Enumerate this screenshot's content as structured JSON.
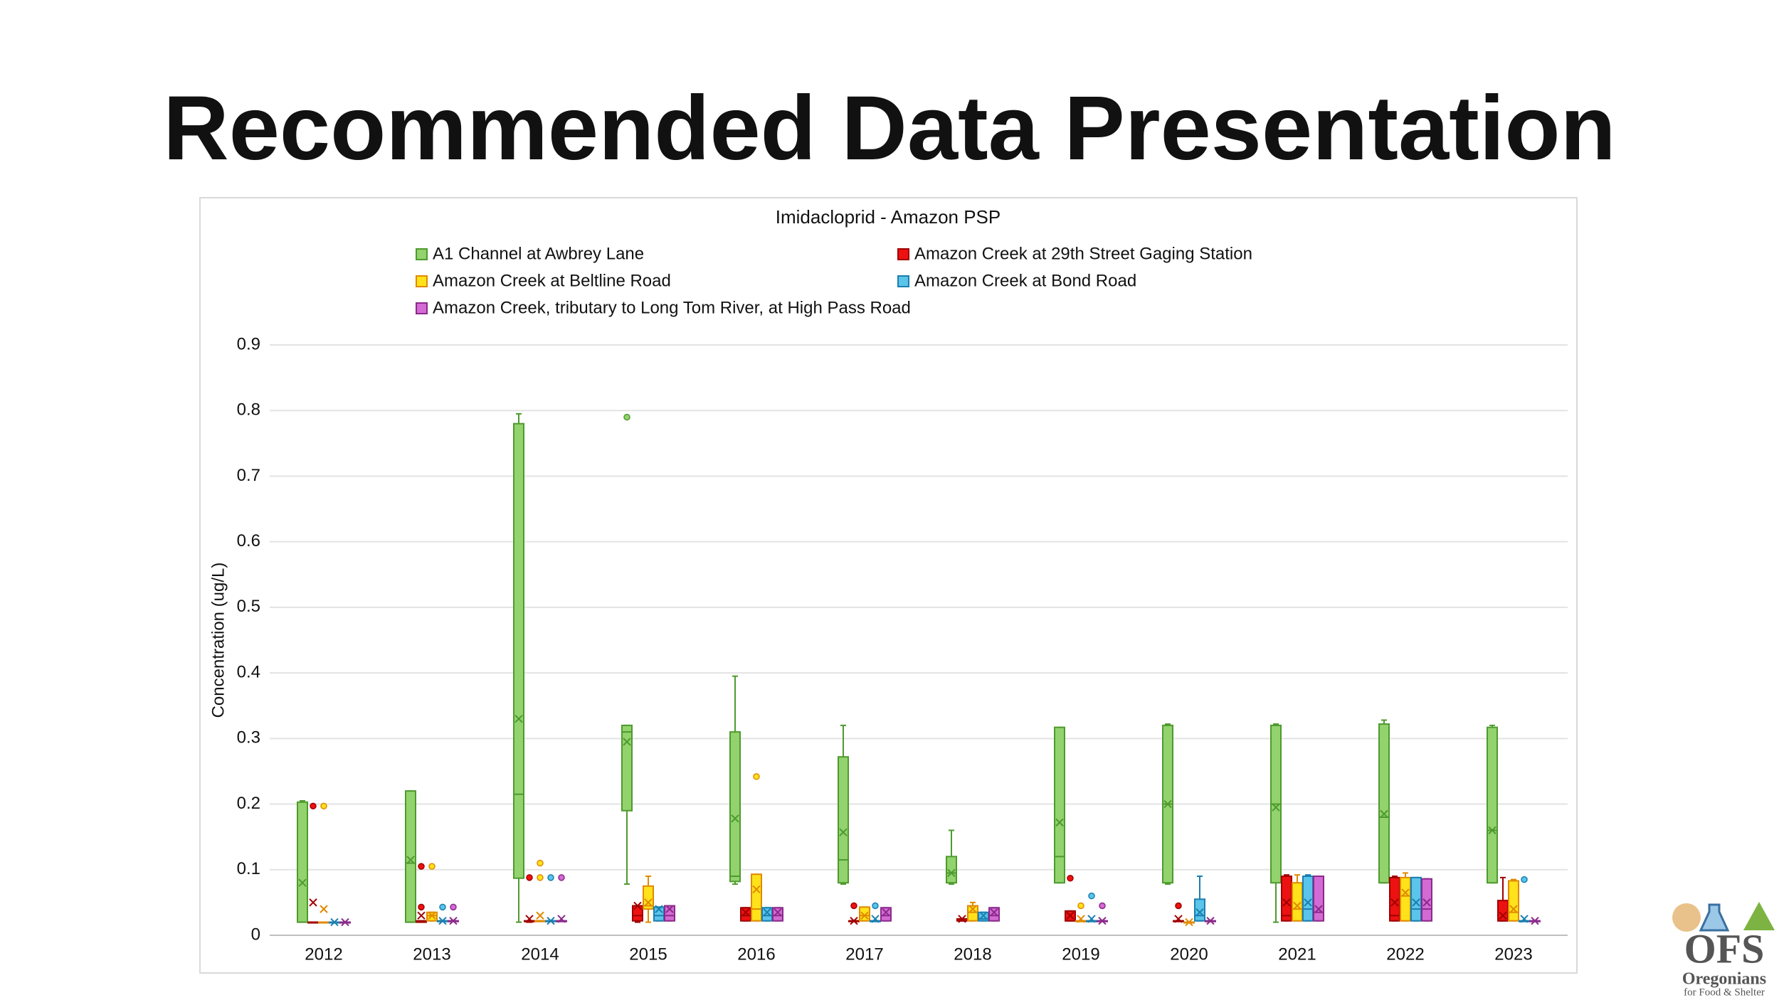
{
  "header": {
    "title": "Recommended Data Presentation"
  },
  "logo": {
    "mark": "OFS",
    "name": "Oregonians",
    "tagline": "for Food & Shelter"
  },
  "chart_data": {
    "type": "box",
    "title": "Imidacloprid - Amazon PSP",
    "y_label": "Concentration (ug/L)",
    "categories": [
      "2012",
      "2013",
      "2014",
      "2015",
      "2016",
      "2017",
      "2018",
      "2019",
      "2020",
      "2021",
      "2022",
      "2023"
    ],
    "ylim": [
      0,
      0.9
    ],
    "yticks": [
      0,
      0.1,
      0.2,
      0.3,
      0.4,
      0.5,
      0.6,
      0.7,
      0.8,
      0.9
    ],
    "grid": true,
    "series": [
      {
        "name": "A1 Channel at Awbrey Lane",
        "color": "#92d36e",
        "edge": "#4e9a2e",
        "min": [
          0.02,
          0.02,
          0.02,
          0.078,
          0.078,
          0.078,
          0.078,
          0.08,
          0.078,
          0.02,
          0.08,
          0.08
        ],
        "q1": [
          0.02,
          0.02,
          0.087,
          0.19,
          0.082,
          0.08,
          0.08,
          0.08,
          0.08,
          0.08,
          0.08,
          0.08
        ],
        "median": [
          0.02,
          0.11,
          0.215,
          0.31,
          0.09,
          0.115,
          0.095,
          0.12,
          0.2,
          0.2,
          0.18,
          0.16
        ],
        "q3": [
          0.203,
          0.22,
          0.78,
          0.32,
          0.31,
          0.272,
          0.12,
          0.317,
          0.32,
          0.32,
          0.322,
          0.317
        ],
        "max": [
          0.205,
          0.22,
          0.795,
          0.32,
          0.395,
          0.32,
          0.16,
          0.317,
          0.322,
          0.322,
          0.328,
          0.32
        ],
        "mean": [
          0.08,
          0.115,
          0.33,
          0.295,
          0.178,
          0.157,
          0.095,
          0.172,
          0.2,
          0.195,
          0.185,
          0.16
        ],
        "outliers": [
          [],
          [],
          [],
          [
            0.79
          ],
          [],
          [],
          [],
          [],
          [],
          [],
          [],
          []
        ]
      },
      {
        "name": "Amazon Creek at 29th Street Gaging Station",
        "color": "#ee1111",
        "edge": "#a00000",
        "min": [
          0.02,
          0.02,
          0.02,
          0.02,
          0.022,
          0.022,
          0.022,
          0.022,
          0.022,
          0.022,
          0.022,
          0.022
        ],
        "q1": [
          0.02,
          0.02,
          0.022,
          0.022,
          0.022,
          0.022,
          0.022,
          0.022,
          0.022,
          0.022,
          0.022,
          0.022
        ],
        "median": [
          0.02,
          0.02,
          0.022,
          0.03,
          0.03,
          0.022,
          0.022,
          0.022,
          0.022,
          0.03,
          0.03,
          0.022
        ],
        "q3": [
          0.02,
          0.022,
          0.022,
          0.045,
          0.042,
          0.022,
          0.025,
          0.037,
          0.022,
          0.09,
          0.088,
          0.053
        ],
        "max": [
          0.02,
          0.022,
          0.022,
          0.045,
          0.042,
          0.022,
          0.025,
          0.037,
          0.022,
          0.092,
          0.09,
          0.088
        ],
        "mean": [
          0.05,
          0.03,
          0.025,
          0.045,
          0.035,
          0.022,
          0.025,
          0.03,
          0.025,
          0.05,
          0.05,
          0.03
        ],
        "outliers": [
          [
            0.197
          ],
          [
            0.105,
            0.043
          ],
          [
            0.088
          ],
          [],
          [],
          [
            0.045
          ],
          [],
          [
            0.087
          ],
          [
            0.045
          ],
          [],
          [],
          []
        ]
      },
      {
        "name": "Amazon Creek at Beltline Road",
        "color": "#ffe21a",
        "edge": "#e08a00",
        "min": [
          0.02,
          0.022,
          0.022,
          0.02,
          0.022,
          0.022,
          0.022,
          0.022,
          0.02,
          0.022,
          0.022,
          0.022
        ],
        "q1": [
          0.02,
          0.022,
          0.022,
          0.04,
          0.022,
          0.022,
          0.022,
          0.022,
          0.02,
          0.022,
          0.022,
          0.022
        ],
        "median": [
          0.02,
          0.03,
          0.022,
          0.045,
          0.04,
          0.03,
          0.035,
          0.022,
          0.02,
          0.04,
          0.06,
          0.035
        ],
        "q3": [
          0.02,
          0.035,
          0.022,
          0.075,
          0.093,
          0.043,
          0.045,
          0.022,
          0.02,
          0.08,
          0.088,
          0.083
        ],
        "max": [
          0.02,
          0.035,
          0.022,
          0.09,
          0.093,
          0.043,
          0.05,
          0.022,
          0.02,
          0.092,
          0.095,
          0.085
        ],
        "mean": [
          0.04,
          0.03,
          0.03,
          0.05,
          0.07,
          0.03,
          0.04,
          0.025,
          0.02,
          0.045,
          0.065,
          0.04
        ],
        "outliers": [
          [
            0.197
          ],
          [
            0.105
          ],
          [
            0.11,
            0.088
          ],
          [],
          [
            0.242
          ],
          [],
          [],
          [
            0.045
          ],
          [],
          [],
          [],
          []
        ]
      },
      {
        "name": "Amazon Creek at Bond Road",
        "color": "#5bc4ea",
        "edge": "#1a7fb0",
        "min": [
          0.02,
          0.022,
          0.022,
          0.022,
          0.022,
          0.022,
          0.022,
          0.022,
          0.022,
          0.022,
          0.022,
          0.022
        ],
        "q1": [
          0.02,
          0.022,
          0.022,
          0.022,
          0.022,
          0.022,
          0.022,
          0.022,
          0.022,
          0.022,
          0.022,
          0.022
        ],
        "median": [
          0.02,
          0.022,
          0.022,
          0.03,
          0.03,
          0.022,
          0.025,
          0.022,
          0.03,
          0.04,
          0.04,
          0.022
        ],
        "q3": [
          0.02,
          0.022,
          0.022,
          0.043,
          0.042,
          0.022,
          0.035,
          0.022,
          0.055,
          0.09,
          0.088,
          0.022
        ],
        "max": [
          0.02,
          0.022,
          0.022,
          0.043,
          0.042,
          0.022,
          0.035,
          0.022,
          0.09,
          0.092,
          0.088,
          0.022
        ],
        "mean": [
          0.02,
          0.022,
          0.022,
          0.04,
          0.035,
          0.025,
          0.03,
          0.025,
          0.035,
          0.05,
          0.05,
          0.025
        ],
        "outliers": [
          [],
          [
            0.043
          ],
          [
            0.088
          ],
          [],
          [],
          [
            0.045
          ],
          [],
          [
            0.06
          ],
          [],
          [],
          [],
          [
            0.085
          ]
        ]
      },
      {
        "name": "Amazon Creek, tributary to Long Tom River, at High Pass Road",
        "color": "#d46ad4",
        "edge": "#8a2a8a",
        "min": [
          0.02,
          0.022,
          0.022,
          0.022,
          0.022,
          0.022,
          0.022,
          0.022,
          0.022,
          0.022,
          0.022,
          0.022
        ],
        "q1": [
          0.02,
          0.022,
          0.022,
          0.022,
          0.022,
          0.022,
          0.022,
          0.022,
          0.022,
          0.022,
          0.022,
          0.022
        ],
        "median": [
          0.02,
          0.022,
          0.022,
          0.03,
          0.03,
          0.03,
          0.03,
          0.022,
          0.022,
          0.035,
          0.04,
          0.022
        ],
        "q3": [
          0.02,
          0.022,
          0.022,
          0.045,
          0.042,
          0.042,
          0.042,
          0.022,
          0.022,
          0.09,
          0.086,
          0.022
        ],
        "max": [
          0.02,
          0.022,
          0.022,
          0.045,
          0.042,
          0.042,
          0.042,
          0.022,
          0.022,
          0.09,
          0.086,
          0.022
        ],
        "mean": [
          0.02,
          0.022,
          0.025,
          0.04,
          0.035,
          0.035,
          0.035,
          0.022,
          0.022,
          0.04,
          0.05,
          0.022
        ],
        "outliers": [
          [],
          [
            0.043
          ],
          [
            0.088
          ],
          [],
          [],
          [],
          [],
          [
            0.045
          ],
          [],
          [],
          [],
          []
        ]
      }
    ]
  }
}
